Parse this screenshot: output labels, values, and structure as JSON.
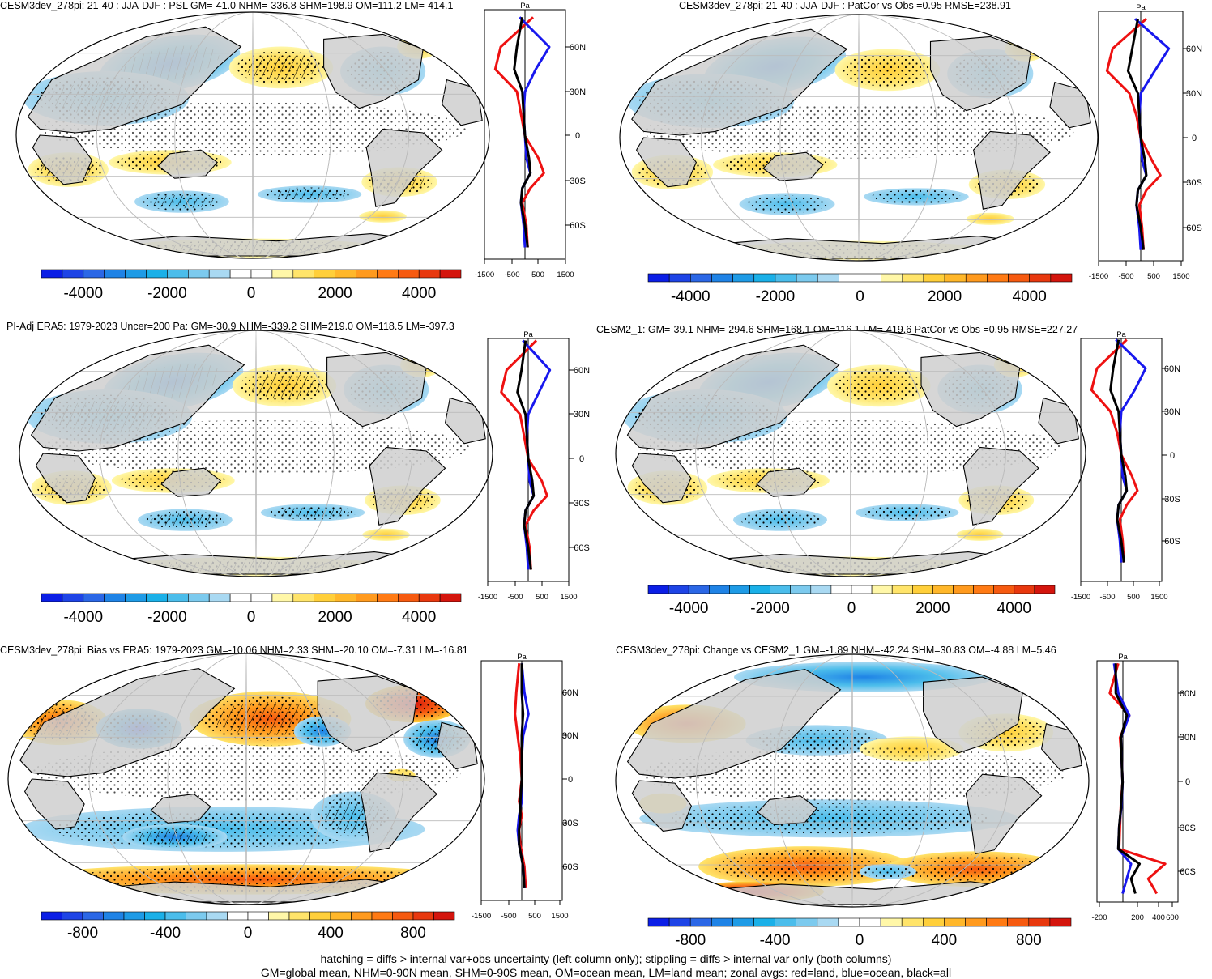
{
  "colorbar_colors": [
    "#0b1ee6",
    "#1e44e6",
    "#2b67e6",
    "#1f83e6",
    "#1e9be6",
    "#1ab0e8",
    "#4bbdeb",
    "#7ccaee",
    "#a9d9f2",
    "#ffffff",
    "#ffffff",
    "#fff7a8",
    "#ffe46a",
    "#ffcf3a",
    "#ffb72a",
    "#ff9a1e",
    "#ff7a14",
    "#f65a10",
    "#e8380e",
    "#d4150d"
  ],
  "panels": [
    {
      "id": "p1",
      "title": "CESM3dev_278pi: 21-40 : JJA-DJF : PSL GM=-41.0 NHM=-336.8 SHM=198.9 OM=111.2 LM=-414.1",
      "colorbar_ticks": [
        "-4000",
        "-2000",
        "0",
        "2000",
        "4000"
      ],
      "zonal_unit": "Pa",
      "zonal_xticks": [
        "-1500",
        "-500",
        "500",
        "1500"
      ],
      "lat_ticks": [
        "60N",
        "30N",
        "0",
        "30S",
        "60S"
      ]
    },
    {
      "id": "p2",
      "title": "CESM3dev_278pi: 21-40 : JJA-DJF : PatCor vs Obs =0.95 RMSE=238.91",
      "colorbar_ticks": [
        "-4000",
        "-2000",
        "0",
        "2000",
        "4000"
      ],
      "zonal_unit": "Pa",
      "zonal_xticks": [
        "-1500",
        "-500",
        "500",
        "1500"
      ],
      "lat_ticks": [
        "60N",
        "30N",
        "0",
        "30S",
        "60S"
      ]
    },
    {
      "id": "p3",
      "title": "PI-Adj ERA5: 1979-2023 Uncer=200 Pa: GM=-30.9 NHM=-339.2 SHM=219.0 OM=118.5 LM=-397.3",
      "colorbar_ticks": [
        "-4000",
        "-2000",
        "0",
        "2000",
        "4000"
      ],
      "zonal_unit": "Pa",
      "zonal_xticks": [
        "-1500",
        "-500",
        "500",
        "1500"
      ],
      "lat_ticks": [
        "60N",
        "30N",
        "0",
        "30S",
        "60S"
      ]
    },
    {
      "id": "p4",
      "title": "CESM2_1: GM=-39.1 NHM=-294.6 SHM=168.1 OM=116.1 LM=-419.6 PatCor vs Obs =0.95 RMSE=227.27",
      "colorbar_ticks": [
        "-4000",
        "-2000",
        "0",
        "2000",
        "4000"
      ],
      "zonal_unit": "Pa",
      "zonal_xticks": [
        "-1500",
        "-500",
        "500",
        "1500"
      ],
      "lat_ticks": [
        "60N",
        "30N",
        "0",
        "30S",
        "60S"
      ]
    },
    {
      "id": "p5",
      "title": "CESM3dev_278pi: Bias vs ERA5: 1979-2023 GM=-10.06 NHM=2.33 SHM=-20.10 OM=-7.31 LM=-16.81",
      "colorbar_ticks": [
        "-800",
        "-400",
        "0",
        "400",
        "800"
      ],
      "zonal_unit": "Pa",
      "zonal_xticks": [
        "-1500",
        "-500",
        "500",
        "1500"
      ],
      "lat_ticks": [
        "60N",
        "30N",
        "0",
        "30S",
        "60S"
      ]
    },
    {
      "id": "p6",
      "title": "CESM3dev_278pi: Change vs CESM2_1 GM=-1.89 NHM=-42.24 SHM=30.83 OM=-4.88 LM=5.46",
      "colorbar_ticks": [
        "-800",
        "-400",
        "0",
        "400",
        "800"
      ],
      "zonal_unit": "Pa",
      "zonal_xticks": [
        "-200",
        "200",
        "400",
        "600"
      ],
      "lat_ticks": [
        "60N",
        "30N",
        "0",
        "30S",
        "60S"
      ]
    }
  ],
  "footer": {
    "line1": "hatching = diffs > internal var+obs uncertainty (left column only); stippling = diffs > internal var only (both columns)",
    "line2": "GM=global mean, NHM=0-90N mean, SHM=0-90S mean, OM=ocean mean, LM=land mean; zonal avgs: red=land, blue=ocean, black=all"
  },
  "chart_data": [
    {
      "type": "map",
      "title": "CESM3dev_278pi: 21-40 : JJA-DJF : PSL GM=-41.0 NHM=-336.8 SHM=198.9 OM=111.2 LM=-414.1",
      "colorbar_range": [
        -5000,
        5000
      ],
      "zonal_mean_profile": {
        "x_range": [
          -1500,
          1500
        ],
        "lat_range": [
          -90,
          90
        ],
        "series": [
          {
            "name": "land",
            "color": "red",
            "lat": [
              80,
              60,
              45,
              30,
              15,
              0,
              -15,
              -25,
              -35,
              -45,
              -60,
              -75
            ],
            "values": [
              300,
              -900,
              -1100,
              -300,
              -150,
              0,
              500,
              700,
              200,
              -100,
              50,
              100
            ]
          },
          {
            "name": "ocean",
            "color": "blue",
            "lat": [
              80,
              60,
              45,
              30,
              15,
              0,
              -15,
              -25,
              -35,
              -45,
              -60,
              -75
            ],
            "values": [
              -200,
              900,
              400,
              0,
              -50,
              0,
              50,
              200,
              -100,
              -150,
              -50,
              0
            ]
          },
          {
            "name": "all",
            "color": "black",
            "lat": [
              80,
              60,
              45,
              30,
              15,
              0,
              -15,
              -25,
              -35,
              -45,
              -60,
              -75
            ],
            "values": [
              -100,
              -300,
              -400,
              -100,
              -50,
              0,
              150,
              200,
              -100,
              -150,
              0,
              100
            ]
          }
        ]
      }
    },
    {
      "type": "map",
      "title": "CESM3dev_278pi: 21-40 : JJA-DJF : PatCor vs Obs =0.95 RMSE=238.91",
      "colorbar_range": [
        -5000,
        5000
      ],
      "zonal_mean_profile": {
        "x_range": [
          -1500,
          1500
        ],
        "lat_range": [
          -90,
          90
        ],
        "series": [
          {
            "name": "land",
            "color": "red",
            "lat": [
              80,
              60,
              45,
              30,
              15,
              0,
              -15,
              -25,
              -35,
              -45,
              -60,
              -75
            ],
            "values": [
              200,
              -1000,
              -1200,
              -400,
              -150,
              0,
              400,
              700,
              200,
              -50,
              50,
              100
            ]
          },
          {
            "name": "ocean",
            "color": "blue",
            "lat": [
              80,
              60,
              45,
              30,
              15,
              0,
              -15,
              -25,
              -35,
              -45,
              -60,
              -75
            ],
            "values": [
              -200,
              1000,
              500,
              0,
              -50,
              0,
              50,
              200,
              -100,
              -150,
              -50,
              0
            ]
          },
          {
            "name": "all",
            "color": "black",
            "lat": [
              80,
              60,
              45,
              30,
              15,
              0,
              -15,
              -25,
              -35,
              -45,
              -60,
              -75
            ],
            "values": [
              -100,
              -300,
              -450,
              -100,
              -50,
              0,
              150,
              200,
              -100,
              -150,
              0,
              100
            ]
          }
        ]
      }
    },
    {
      "type": "map",
      "title": "PI-Adj ERA5: 1979-2023 Uncer=200 Pa: GM=-30.9 NHM=-339.2 SHM=219.0 OM=118.5 LM=-397.3",
      "colorbar_range": [
        -5000,
        5000
      ],
      "zonal_mean_profile": {
        "x_range": [
          -1500,
          1500
        ],
        "lat_range": [
          -90,
          90
        ],
        "series": [
          {
            "name": "land",
            "color": "red",
            "lat": [
              80,
              60,
              45,
              30,
              15,
              0,
              -15,
              -25,
              -35,
              -45,
              -60,
              -75
            ],
            "values": [
              300,
              -800,
              -1000,
              -300,
              -150,
              0,
              500,
              700,
              200,
              -100,
              50,
              100
            ]
          },
          {
            "name": "ocean",
            "color": "blue",
            "lat": [
              80,
              60,
              45,
              30,
              15,
              0,
              -15,
              -25,
              -35,
              -45,
              -60,
              -75
            ],
            "values": [
              -200,
              800,
              400,
              0,
              -50,
              0,
              50,
              200,
              -100,
              -150,
              -50,
              0
            ]
          },
          {
            "name": "all",
            "color": "black",
            "lat": [
              80,
              60,
              45,
              30,
              15,
              0,
              -15,
              -25,
              -35,
              -45,
              -60,
              -75
            ],
            "values": [
              -100,
              -250,
              -400,
              -100,
              -50,
              0,
              150,
              200,
              -100,
              -150,
              0,
              100
            ]
          }
        ]
      }
    },
    {
      "type": "map",
      "title": "CESM2_1: GM=-39.1 NHM=-294.6 SHM=168.1 OM=116.1 LM=-419.6 PatCor vs Obs =0.95 RMSE=227.27",
      "colorbar_range": [
        -5000,
        5000
      ],
      "zonal_mean_profile": {
        "x_range": [
          -1500,
          1500
        ],
        "lat_range": [
          -90,
          90
        ],
        "series": [
          {
            "name": "land",
            "color": "red",
            "lat": [
              80,
              60,
              45,
              30,
              15,
              0,
              -15,
              -25,
              -35,
              -45,
              -60,
              -75
            ],
            "values": [
              200,
              -900,
              -1100,
              -400,
              -150,
              0,
              400,
              600,
              200,
              -50,
              50,
              100
            ]
          },
          {
            "name": "ocean",
            "color": "blue",
            "lat": [
              80,
              60,
              45,
              30,
              15,
              0,
              -15,
              -25,
              -35,
              -45,
              -60,
              -75
            ],
            "values": [
              -200,
              900,
              500,
              0,
              -50,
              0,
              50,
              200,
              -100,
              -150,
              -50,
              0
            ]
          },
          {
            "name": "all",
            "color": "black",
            "lat": [
              80,
              60,
              45,
              30,
              15,
              0,
              -15,
              -25,
              -35,
              -45,
              -60,
              -75
            ],
            "values": [
              -100,
              -300,
              -400,
              -100,
              -50,
              0,
              150,
              200,
              -100,
              -150,
              0,
              100
            ]
          }
        ]
      }
    },
    {
      "type": "map",
      "title": "CESM3dev_278pi: Bias vs ERA5: 1979-2023 GM=-10.06 NHM=2.33 SHM=-20.10 OM=-7.31 LM=-16.81",
      "colorbar_range": [
        -1000,
        1000
      ],
      "zonal_mean_profile": {
        "x_range": [
          -1500,
          1500
        ],
        "lat_range": [
          -90,
          90
        ],
        "series": [
          {
            "name": "land",
            "color": "red",
            "lat": [
              80,
              60,
              45,
              30,
              15,
              0,
              -15,
              -25,
              -35,
              -45,
              -60,
              -75
            ],
            "values": [
              -100,
              -200,
              -250,
              -150,
              -50,
              0,
              -100,
              0,
              -100,
              -50,
              100,
              150
            ]
          },
          {
            "name": "ocean",
            "color": "blue",
            "lat": [
              80,
              60,
              45,
              30,
              15,
              0,
              -15,
              -25,
              -35,
              -45,
              -60,
              -75
            ],
            "values": [
              0,
              100,
              250,
              50,
              0,
              0,
              0,
              -100,
              -150,
              -100,
              50,
              100
            ]
          },
          {
            "name": "all",
            "color": "black",
            "lat": [
              80,
              60,
              45,
              30,
              15,
              0,
              -15,
              -25,
              -35,
              -45,
              -60,
              -75
            ],
            "values": [
              0,
              0,
              50,
              0,
              0,
              0,
              -50,
              -50,
              -100,
              -100,
              50,
              100
            ]
          }
        ]
      }
    },
    {
      "type": "map",
      "title": "CESM3dev_278pi: Change vs CESM2_1 GM=-1.89 NHM=-42.24 SHM=30.83 OM=-4.88 LM=5.46",
      "colorbar_range": [
        -1000,
        1000
      ],
      "zonal_mean_profile": {
        "x_range": [
          -300,
          650
        ],
        "lat_range": [
          -90,
          90
        ],
        "series": [
          {
            "name": "land",
            "color": "red",
            "lat": [
              80,
              60,
              45,
              30,
              15,
              0,
              -15,
              -30,
              -45,
              -55,
              -65,
              -75
            ],
            "values": [
              -50,
              -150,
              80,
              -30,
              -10,
              0,
              -20,
              -30,
              -40,
              500,
              300,
              400
            ]
          },
          {
            "name": "ocean",
            "color": "blue",
            "lat": [
              80,
              60,
              45,
              30,
              15,
              0,
              -15,
              -30,
              -45,
              -55,
              -65,
              -75
            ],
            "values": [
              -100,
              -50,
              80,
              -20,
              -10,
              0,
              -10,
              -40,
              -50,
              100,
              50,
              0
            ]
          },
          {
            "name": "all",
            "color": "black",
            "lat": [
              80,
              60,
              45,
              30,
              15,
              0,
              -15,
              -30,
              -45,
              -55,
              -65,
              -75
            ],
            "values": [
              -80,
              -80,
              50,
              -20,
              -10,
              0,
              -15,
              -40,
              -50,
              200,
              100,
              150
            ]
          }
        ]
      }
    }
  ]
}
